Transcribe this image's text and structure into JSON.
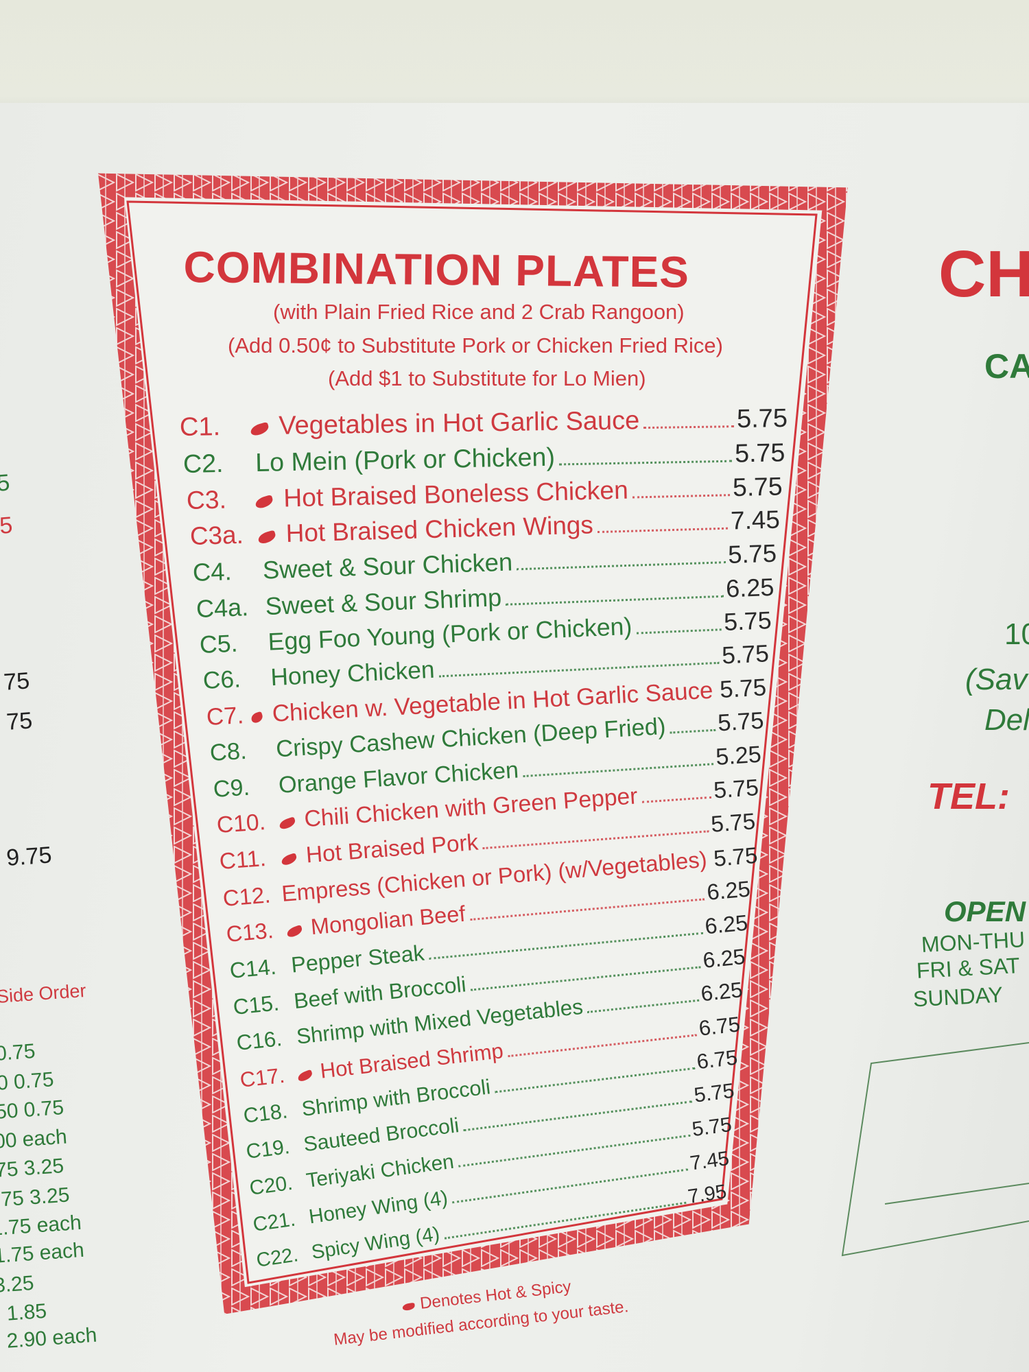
{
  "menu": {
    "title": "COMBINATION PLATES",
    "subtitles": [
      "(with Plain Fried Rice and 2 Crab Rangoon)",
      "(Add 0.50¢ to Substitute Pork or Chicken Fried Rice)",
      "(Add $1 to Substitute for Lo Mien)"
    ],
    "items": [
      {
        "code": "C1.",
        "name": "Vegetables in Hot Garlic Sauce",
        "price": "5.75",
        "spicy": true
      },
      {
        "code": "C2.",
        "name": "Lo Mein (Pork or Chicken)",
        "price": "5.75",
        "spicy": false
      },
      {
        "code": "C3.",
        "name": "Hot Braised Boneless Chicken",
        "price": "5.75",
        "spicy": true
      },
      {
        "code": "C3a.",
        "name": "Hot Braised Chicken Wings",
        "price": "7.45",
        "spicy": true
      },
      {
        "code": "C4.",
        "name": "Sweet & Sour Chicken",
        "price": "5.75",
        "spicy": false
      },
      {
        "code": "C4a.",
        "name": "Sweet & Sour Shrimp",
        "price": "6.25",
        "spicy": false
      },
      {
        "code": "C5.",
        "name": "Egg Foo Young (Pork or Chicken)",
        "price": "5.75",
        "spicy": false
      },
      {
        "code": "C6.",
        "name": "Honey Chicken",
        "price": "5.75",
        "spicy": false
      },
      {
        "code": "C7.",
        "name": "Chicken w. Vegetable in Hot Garlic Sauce",
        "price": "5.75",
        "spicy": true
      },
      {
        "code": "C8.",
        "name": "Crispy Cashew Chicken (Deep Fried)",
        "price": "5.75",
        "spicy": false
      },
      {
        "code": "C9.",
        "name": "Orange Flavor Chicken",
        "price": "5.25",
        "spicy": false
      },
      {
        "code": "C10.",
        "name": "Chili Chicken with Green Pepper",
        "price": "5.75",
        "spicy": true
      },
      {
        "code": "C11.",
        "name": "Hot Braised Pork",
        "price": "5.75",
        "spicy": true
      },
      {
        "code": "C12.",
        "name": "Empress (Chicken or Pork) (w/Vegetables)",
        "price": "5.75",
        "spicy": true
      },
      {
        "code": "C13.",
        "name": "Mongolian Beef",
        "price": "6.25",
        "spicy": true
      },
      {
        "code": "C14.",
        "name": "Pepper Steak",
        "price": "6.25",
        "spicy": false
      },
      {
        "code": "C15.",
        "name": "Beef with Broccoli",
        "price": "6.25",
        "spicy": false
      },
      {
        "code": "C16.",
        "name": "Shrimp with Mixed Vegetables",
        "price": "6.25",
        "spicy": false
      },
      {
        "code": "C17.",
        "name": "Hot Braised Shrimp",
        "price": "6.75",
        "spicy": true
      },
      {
        "code": "C18.",
        "name": "Shrimp with Broccoli",
        "price": "6.75",
        "spicy": false
      },
      {
        "code": "C19.",
        "name": "Sauteed Broccoli",
        "price": "5.75",
        "spicy": false
      },
      {
        "code": "C20.",
        "name": "Teriyaki Chicken",
        "price": "5.75",
        "spicy": false
      },
      {
        "code": "C21.",
        "name": "Honey Wing (4)",
        "price": "7.45",
        "spicy": false
      },
      {
        "code": "C22.",
        "name": "Spicy Wing (4)",
        "price": "7.95",
        "spicy": false
      }
    ],
    "footnote": "Denotes Hot & Spicy",
    "footnote2": "May be modified according to your taste."
  },
  "left_panel": {
    "upper": [
      "5",
      "5",
      "75",
      "75",
      "9.75"
    ],
    "side_order_heading": "Side Order",
    "lines": [
      "0.75",
      "0  0.75",
      "50  0.75",
      "00 each",
      "75   3.25",
      ".75   3.25",
      "1.75 each",
      "1.75 each",
      "3.25",
      ". 1.85",
      ". 2.90 each"
    ]
  },
  "right_panel": {
    "big_title": "CH",
    "subtitle": "CA",
    "address_lines": [
      "10",
      "(Sav",
      "Del"
    ],
    "tel": "TEL:",
    "open": "OPEN",
    "hours": [
      "MON-THU",
      "FRI & SAT",
      "SUNDAY"
    ]
  },
  "colors": {
    "red": "#cf3a40",
    "green": "#2f7a3a",
    "handwriting": "#2a2a2a"
  }
}
